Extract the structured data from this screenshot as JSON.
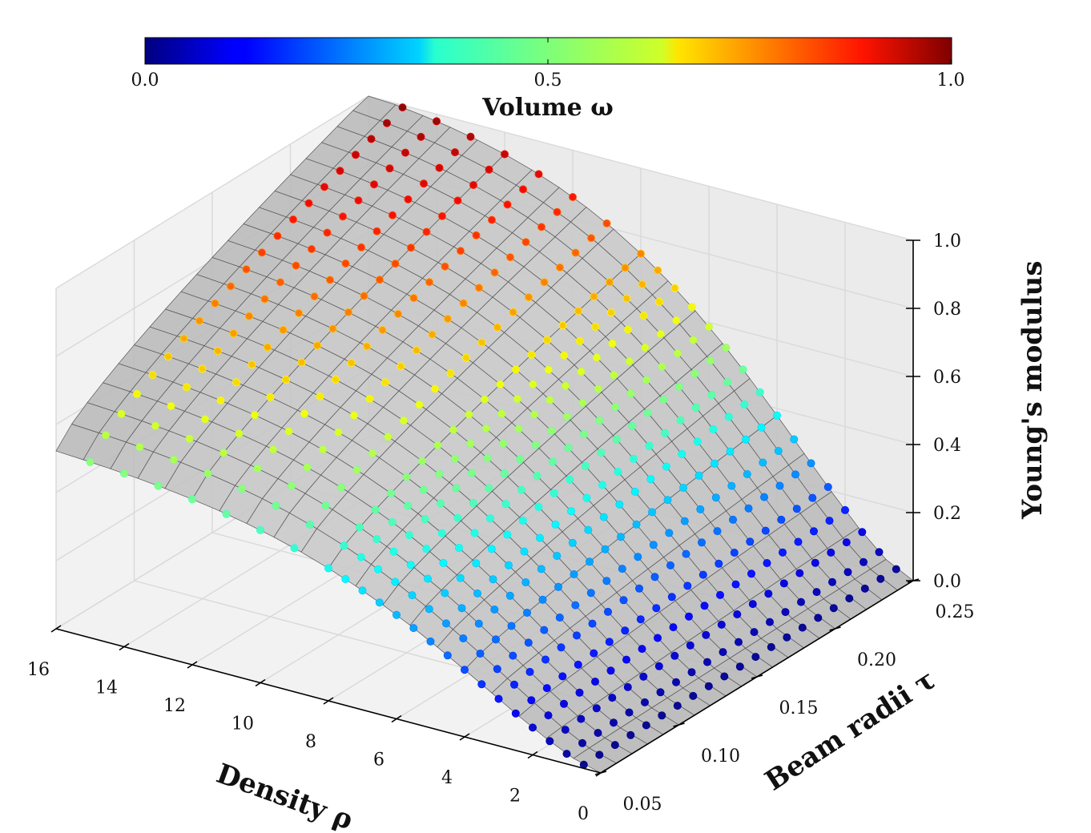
{
  "chart_data": {
    "type": "surface3d-scatter",
    "colorbar": {
      "label": "Volume ω",
      "ticks": [
        "0.0",
        "0.5",
        "1.0"
      ],
      "colormap": "jet",
      "range": [
        0.0,
        1.0
      ]
    },
    "axes": {
      "x": {
        "label": "Density ρ",
        "ticks": [
          "0",
          "2",
          "4",
          "6",
          "8",
          "10",
          "12",
          "14",
          "16"
        ],
        "range": [
          0,
          16
        ]
      },
      "y": {
        "label": "Beam radii τ",
        "ticks": [
          "0.05",
          "0.10",
          "0.15",
          "0.20",
          "0.25"
        ],
        "range": [
          0.05,
          0.25
        ]
      },
      "z": {
        "label": "Young's modulus",
        "ticks": [
          "0.0",
          "0.2",
          "0.4",
          "0.6",
          "0.8",
          "1.0"
        ],
        "range": [
          0.0,
          1.0
        ]
      }
    },
    "surface": {
      "color": "#b9b9b9",
      "rows_tau": 20,
      "cols_rho": 20
    },
    "points": {
      "rho_values": [
        0.5,
        1.0,
        1.5,
        2.0,
        2.5,
        3.0,
        3.5,
        4.0,
        4.5,
        5.0,
        5.5,
        6.0,
        6.5,
        7.0,
        7.5,
        8.0,
        9.0,
        10.0,
        11.0,
        12.0,
        13.0,
        14.0,
        15.0
      ],
      "tau_values": [
        0.05,
        0.06,
        0.07,
        0.08,
        0.09,
        0.1,
        0.11,
        0.12,
        0.13,
        0.14,
        0.15,
        0.16,
        0.17,
        0.18,
        0.19,
        0.2,
        0.21,
        0.22,
        0.23,
        0.24,
        0.25
      ],
      "grid": "full"
    },
    "grid": true
  }
}
